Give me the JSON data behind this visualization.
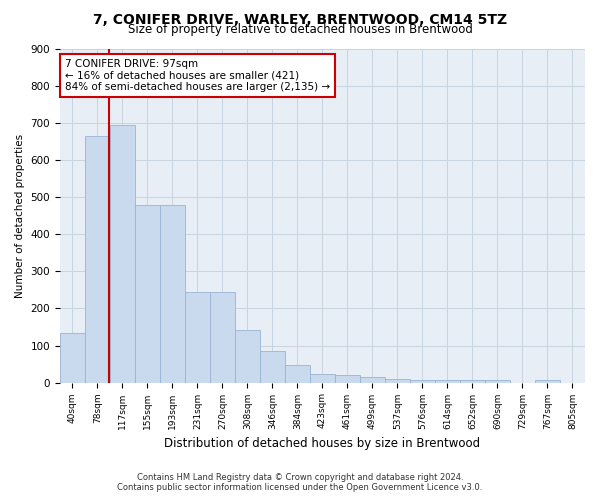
{
  "title1": "7, CONIFER DRIVE, WARLEY, BRENTWOOD, CM14 5TZ",
  "title2": "Size of property relative to detached houses in Brentwood",
  "xlabel": "Distribution of detached houses by size in Brentwood",
  "ylabel": "Number of detached properties",
  "footer1": "Contains HM Land Registry data © Crown copyright and database right 2024.",
  "footer2": "Contains public sector information licensed under the Open Government Licence v3.0.",
  "bar_labels": [
    "40sqm",
    "78sqm",
    "117sqm",
    "155sqm",
    "193sqm",
    "231sqm",
    "270sqm",
    "308sqm",
    "346sqm",
    "384sqm",
    "423sqm",
    "461sqm",
    "499sqm",
    "537sqm",
    "576sqm",
    "614sqm",
    "652sqm",
    "690sqm",
    "729sqm",
    "767sqm",
    "805sqm"
  ],
  "bar_values": [
    135,
    665,
    695,
    478,
    478,
    245,
    245,
    143,
    85,
    47,
    22,
    20,
    15,
    10,
    8,
    8,
    8,
    8,
    0,
    8,
    0
  ],
  "bar_color": "#c9d9ee",
  "bar_edge_color": "#9ab4d4",
  "grid_color": "#c8d4e0",
  "bg_color": "#e8eef6",
  "annotation_line1": "7 CONIFER DRIVE: 97sqm",
  "annotation_line2": "← 16% of detached houses are smaller (421)",
  "annotation_line3": "84% of semi-detached houses are larger (2,135) →",
  "annotation_box_color": "#ffffff",
  "annotation_edge_color": "#cc0000",
  "vline_color": "#cc0000",
  "vline_x": 1.45,
  "ylim": [
    0,
    900
  ],
  "yticks": [
    0,
    100,
    200,
    300,
    400,
    500,
    600,
    700,
    800,
    900
  ]
}
